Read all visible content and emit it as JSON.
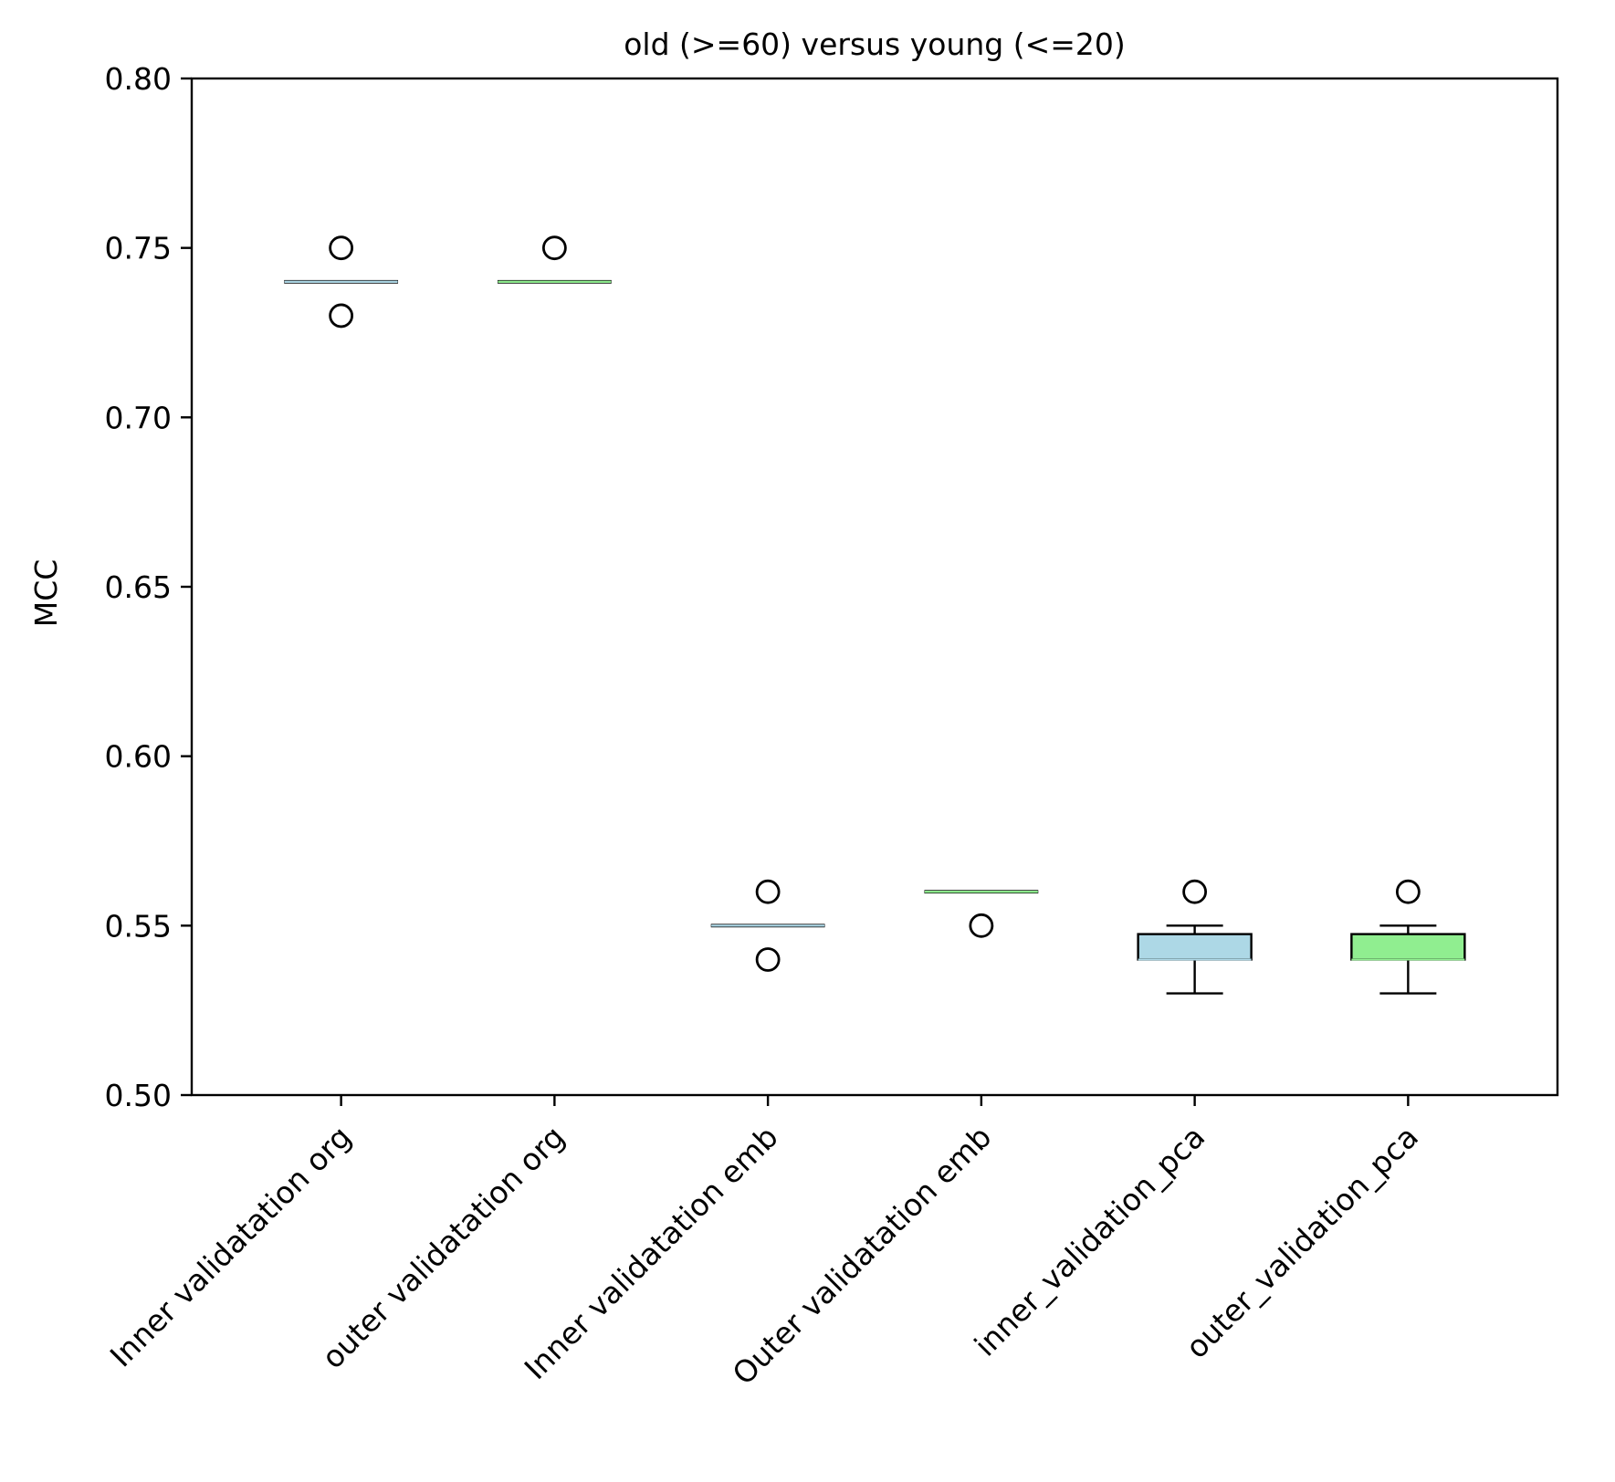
{
  "chart_data": {
    "type": "box",
    "title": "old (>=60) versus young (<=20)",
    "xlabel": "",
    "ylabel": "MCC",
    "ylim": [
      0.5,
      0.8
    ],
    "yticks": [
      "0.50",
      "0.55",
      "0.60",
      "0.65",
      "0.70",
      "0.75",
      "0.80"
    ],
    "grid": false,
    "categories": [
      "Inner validatation org",
      "outer validatation org",
      "Inner validatation emb",
      "Outer validatation emb",
      "inner_validation_pca",
      "outer_validation_pca"
    ],
    "boxes": [
      {
        "category": "Inner validatation org",
        "color": "#add8e6",
        "whisker_low": 0.74,
        "q1": 0.74,
        "median": 0.74,
        "q3": 0.74,
        "whisker_high": 0.74,
        "outliers": [
          0.75,
          0.73
        ]
      },
      {
        "category": "outer validatation org",
        "color": "#90ee90",
        "whisker_low": 0.74,
        "q1": 0.74,
        "median": 0.74,
        "q3": 0.74,
        "whisker_high": 0.74,
        "outliers": [
          0.75
        ]
      },
      {
        "category": "Inner validatation emb",
        "color": "#add8e6",
        "whisker_low": 0.55,
        "q1": 0.55,
        "median": 0.55,
        "q3": 0.55,
        "whisker_high": 0.55,
        "outliers": [
          0.56,
          0.54
        ]
      },
      {
        "category": "Outer validatation emb",
        "color": "#90ee90",
        "whisker_low": 0.56,
        "q1": 0.56,
        "median": 0.56,
        "q3": 0.56,
        "whisker_high": 0.56,
        "outliers": [
          0.55
        ]
      },
      {
        "category": "inner_validation_pca",
        "color": "#add8e6",
        "whisker_low": 0.53,
        "q1": 0.54,
        "median": 0.54,
        "q3": 0.5475,
        "whisker_high": 0.55,
        "outliers": [
          0.56
        ]
      },
      {
        "category": "outer_validation_pca",
        "color": "#90ee90",
        "whisker_low": 0.53,
        "q1": 0.54,
        "median": 0.54,
        "q3": 0.5475,
        "whisker_high": 0.55,
        "outliers": [
          0.56
        ]
      }
    ]
  }
}
